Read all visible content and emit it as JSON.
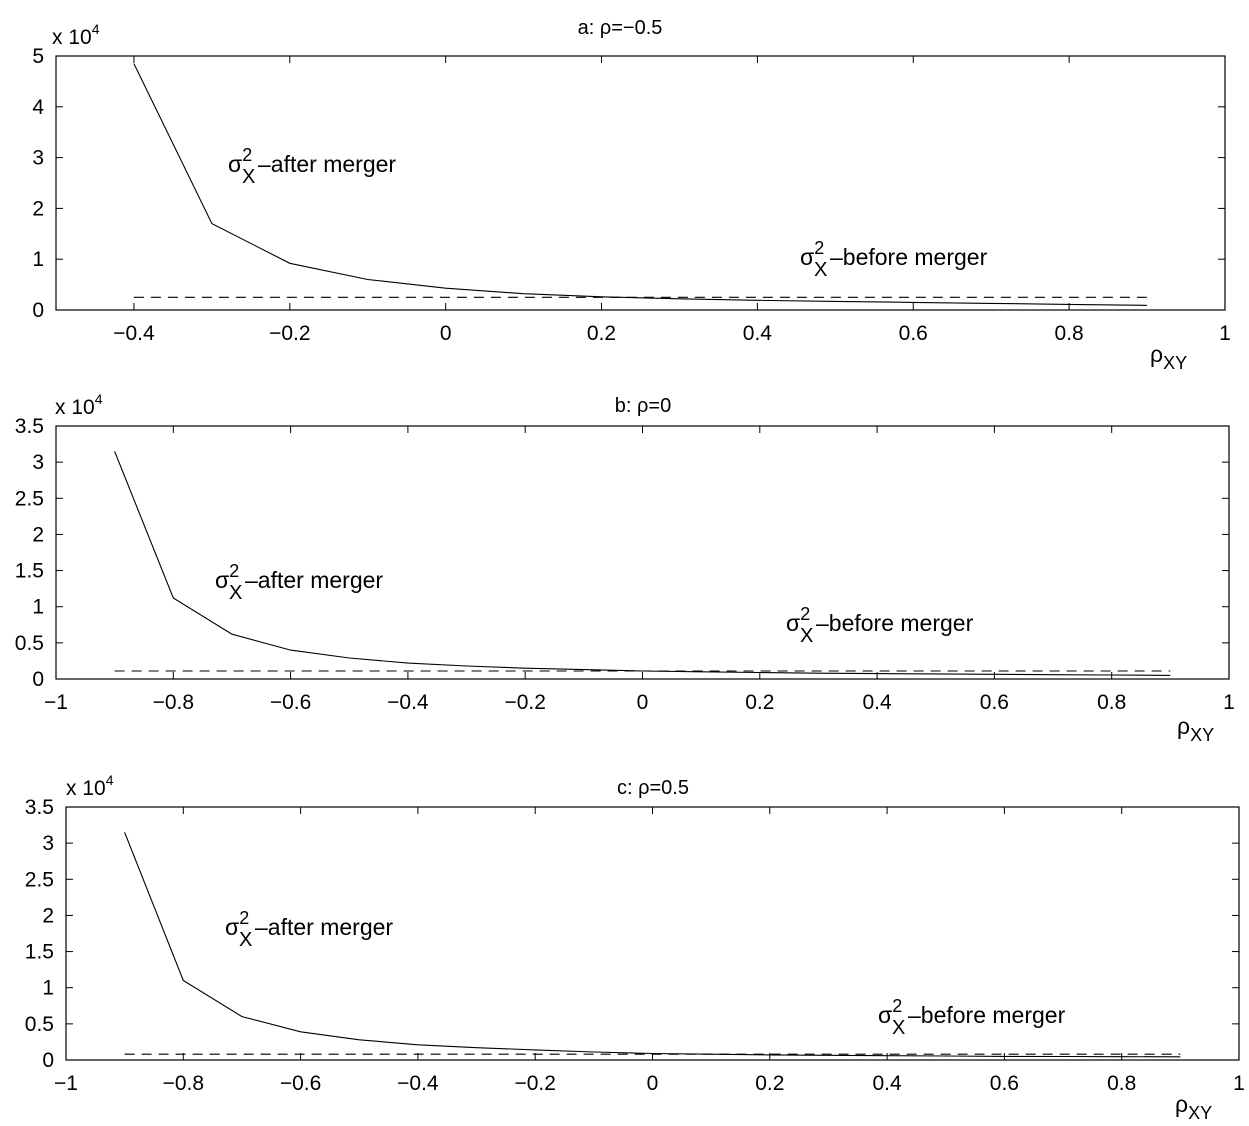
{
  "chart_data": [
    {
      "type": "line",
      "title": "a: ρ=−0.5",
      "xlabel_symbol": "ρ",
      "xlabel_subscript": "XY",
      "ylabel": "",
      "y_exponent_text": "x 10",
      "y_exponent_power": "4",
      "xlim": [
        -0.5,
        1
      ],
      "ylim": [
        0,
        50000
      ],
      "xticks": [
        -0.4,
        -0.2,
        0,
        0.2,
        0.4,
        0.6,
        0.8,
        1
      ],
      "xtick_labels": [
        "−0.4",
        "−0.2",
        "0",
        "0.2",
        "0.4",
        "0.6",
        "0.8",
        "1"
      ],
      "yticks": [
        0,
        10000,
        20000,
        30000,
        40000,
        50000
      ],
      "ytick_labels": [
        "0",
        "1",
        "2",
        "3",
        "4",
        "5"
      ],
      "grid": false,
      "annotations": [
        {
          "sym": "σ",
          "sup": "2",
          "sub": "X",
          "text": "–after merger"
        },
        {
          "sym": "σ",
          "sup": "2",
          "sub": "X",
          "text": "–before merger"
        }
      ],
      "series": [
        {
          "style": "solid",
          "x": [
            -0.4,
            -0.3,
            -0.2,
            -0.1,
            0,
            0.1,
            0.2,
            0.3,
            0.4,
            0.5,
            0.6,
            0.7,
            0.8,
            0.9
          ],
          "y": [
            48500,
            17000,
            9200,
            6000,
            4300,
            3200,
            2600,
            2200,
            1900,
            1700,
            1500,
            1300,
            1100,
            900
          ]
        },
        {
          "style": "dashed",
          "x": [
            -0.4,
            0.9
          ],
          "y": [
            2500,
            2500
          ]
        }
      ]
    },
    {
      "type": "line",
      "title": "b: ρ=0",
      "xlabel_symbol": "ρ",
      "xlabel_subscript": "XY",
      "ylabel": "",
      "y_exponent_text": "x 10",
      "y_exponent_power": "4",
      "xlim": [
        -1,
        1
      ],
      "ylim": [
        0,
        35000
      ],
      "xticks": [
        -1,
        -0.8,
        -0.6,
        -0.4,
        -0.2,
        0,
        0.2,
        0.4,
        0.6,
        0.8,
        1
      ],
      "xtick_labels": [
        "−1",
        "−0.8",
        "−0.6",
        "−0.4",
        "−0.2",
        "0",
        "0.2",
        "0.4",
        "0.6",
        "0.8",
        "1"
      ],
      "yticks": [
        0,
        5000,
        10000,
        15000,
        20000,
        25000,
        30000,
        35000
      ],
      "ytick_labels": [
        "0",
        "0.5",
        "1",
        "1.5",
        "2",
        "2.5",
        "3",
        "3.5"
      ],
      "grid": false,
      "annotations": [
        {
          "sym": "σ",
          "sup": "2",
          "sub": "X",
          "text": "–after merger"
        },
        {
          "sym": "σ",
          "sup": "2",
          "sub": "X",
          "text": "–before merger"
        }
      ],
      "series": [
        {
          "style": "solid",
          "x": [
            -0.9,
            -0.8,
            -0.7,
            -0.6,
            -0.5,
            -0.4,
            -0.3,
            -0.2,
            -0.1,
            0,
            0.1,
            0.2,
            0.3,
            0.4,
            0.5,
            0.6,
            0.7,
            0.8,
            0.9
          ],
          "y": [
            31500,
            11200,
            6200,
            4000,
            2900,
            2200,
            1800,
            1500,
            1300,
            1100,
            1000,
            900,
            800,
            750,
            700,
            650,
            600,
            550,
            500
          ]
        },
        {
          "style": "dashed",
          "x": [
            -0.9,
            0.9
          ],
          "y": [
            1100,
            1100
          ]
        }
      ]
    },
    {
      "type": "line",
      "title": "c: ρ=0.5",
      "xlabel_symbol": "ρ",
      "xlabel_subscript": "XY",
      "ylabel": "",
      "y_exponent_text": "x 10",
      "y_exponent_power": "4",
      "xlim": [
        -1,
        1
      ],
      "ylim": [
        0,
        35000
      ],
      "xticks": [
        -1,
        -0.8,
        -0.6,
        -0.4,
        -0.2,
        0,
        0.2,
        0.4,
        0.6,
        0.8,
        1
      ],
      "xtick_labels": [
        "−1",
        "−0.8",
        "−0.6",
        "−0.4",
        "−0.2",
        "0",
        "0.2",
        "0.4",
        "0.6",
        "0.8",
        "1"
      ],
      "yticks": [
        0,
        5000,
        10000,
        15000,
        20000,
        25000,
        30000,
        35000
      ],
      "ytick_labels": [
        "0",
        "0.5",
        "1",
        "1.5",
        "2",
        "2.5",
        "3",
        "3.5"
      ],
      "grid": false,
      "annotations": [
        {
          "sym": "σ",
          "sup": "2",
          "sub": "X",
          "text": "–after merger"
        },
        {
          "sym": "σ",
          "sup": "2",
          "sub": "X",
          "text": "–before merger"
        }
      ],
      "series": [
        {
          "style": "solid",
          "x": [
            -0.9,
            -0.8,
            -0.7,
            -0.6,
            -0.5,
            -0.4,
            -0.3,
            -0.2,
            -0.1,
            0,
            0.1,
            0.2,
            0.3,
            0.4,
            0.5,
            0.6,
            0.7,
            0.8,
            0.9
          ],
          "y": [
            31500,
            11000,
            6000,
            3900,
            2800,
            2100,
            1700,
            1400,
            1100,
            900,
            800,
            700,
            650,
            600,
            550,
            500,
            480,
            460,
            440
          ]
        },
        {
          "style": "dashed",
          "x": [
            -0.9,
            0.9
          ],
          "y": [
            800,
            800
          ]
        }
      ]
    }
  ]
}
